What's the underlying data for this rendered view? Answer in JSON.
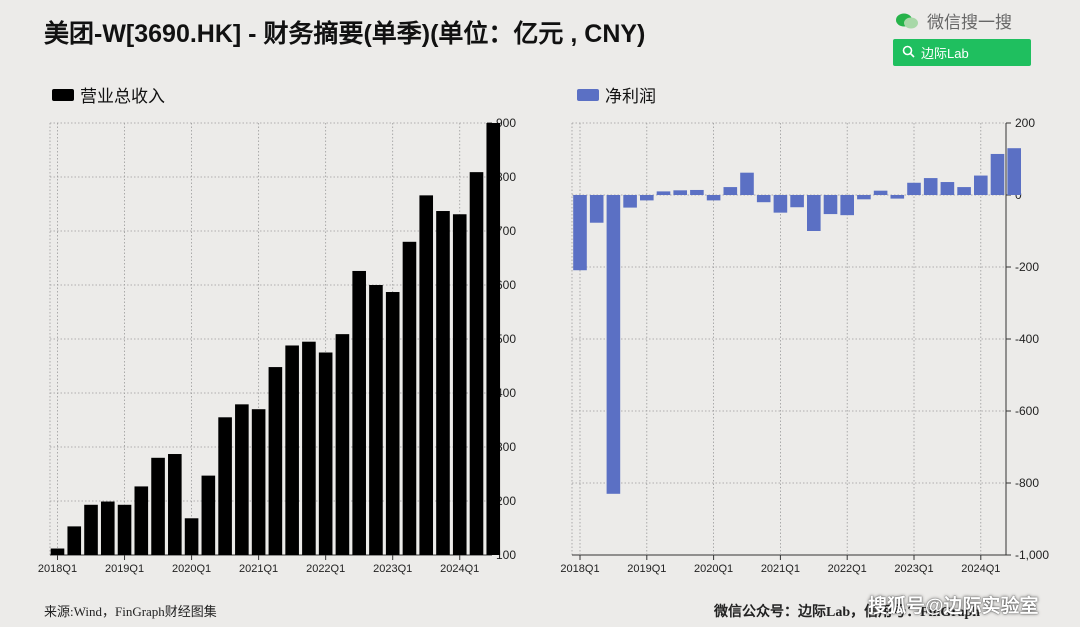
{
  "header": {
    "title": "美团-W[3690.HK] - 财务摘要(单季)(单位：亿元 , CNY)",
    "wechat_label": "微信搜一搜",
    "search_label": "边际Lab"
  },
  "footer": {
    "source": "来源:Wind，FinGraph财经图集",
    "right": "微信公众号：边际Lab，信用号：FinGraph",
    "watermark": "搜狐号@边际实验室"
  },
  "colors": {
    "revenue": "#000000",
    "net_profit": "#5b70c4",
    "grid": "#9a9a9a"
  },
  "chart_data": [
    {
      "type": "bar",
      "legend": "营业总收入",
      "ylim": [
        100,
        900
      ],
      "yticks": [
        "900",
        "800",
        "700",
        "600",
        "500",
        "400",
        "300",
        "200",
        "100"
      ],
      "xticks": [
        "2018Q1",
        "2019Q1",
        "2020Q1",
        "2021Q1",
        "2022Q1",
        "2023Q1",
        "2024Q1"
      ],
      "categories": [
        "2018Q1",
        "2018Q2",
        "2018Q3",
        "2018Q4",
        "2019Q1",
        "2019Q2",
        "2019Q3",
        "2019Q4",
        "2020Q1",
        "2020Q2",
        "2020Q3",
        "2020Q4",
        "2021Q1",
        "2021Q2",
        "2021Q3",
        "2021Q4",
        "2022Q1",
        "2022Q2",
        "2022Q3",
        "2022Q4",
        "2023Q1",
        "2023Q2",
        "2023Q3",
        "2023Q4",
        "2024Q1",
        "2024Q2",
        "2024Q3"
      ],
      "values": [
        112,
        153,
        193,
        199,
        193,
        227,
        280,
        287,
        168,
        247,
        355,
        379,
        370,
        448,
        488,
        495,
        475,
        509,
        626,
        600,
        587,
        680,
        766,
        737,
        731,
        809,
        914
      ]
    },
    {
      "type": "bar",
      "legend": "净利润",
      "ylim": [
        -1000,
        200
      ],
      "yticks": [
        "200",
        "0",
        "-200",
        "-400",
        "-600",
        "-800",
        "-1,000"
      ],
      "xticks": [
        "2018Q1",
        "2019Q1",
        "2020Q1",
        "2021Q1",
        "2022Q1",
        "2023Q1",
        "2024Q1"
      ],
      "categories": [
        "2018Q1",
        "2018Q2",
        "2018Q3",
        "2018Q4",
        "2019Q1",
        "2019Q2",
        "2019Q3",
        "2019Q4",
        "2020Q1",
        "2020Q2",
        "2020Q3",
        "2020Q4",
        "2021Q1",
        "2021Q2",
        "2021Q3",
        "2021Q4",
        "2022Q1",
        "2022Q2",
        "2022Q3",
        "2022Q4",
        "2023Q1",
        "2023Q2",
        "2023Q3",
        "2023Q4",
        "2024Q1",
        "2024Q2",
        "2024Q3"
      ],
      "values": [
        -209,
        -77,
        -830,
        -35,
        -15,
        10,
        13,
        14,
        -15,
        22,
        62,
        -20,
        -49,
        -34,
        -100,
        -53,
        -56,
        -12,
        12,
        -10,
        34,
        47,
        36,
        22,
        54,
        114,
        130
      ]
    }
  ]
}
